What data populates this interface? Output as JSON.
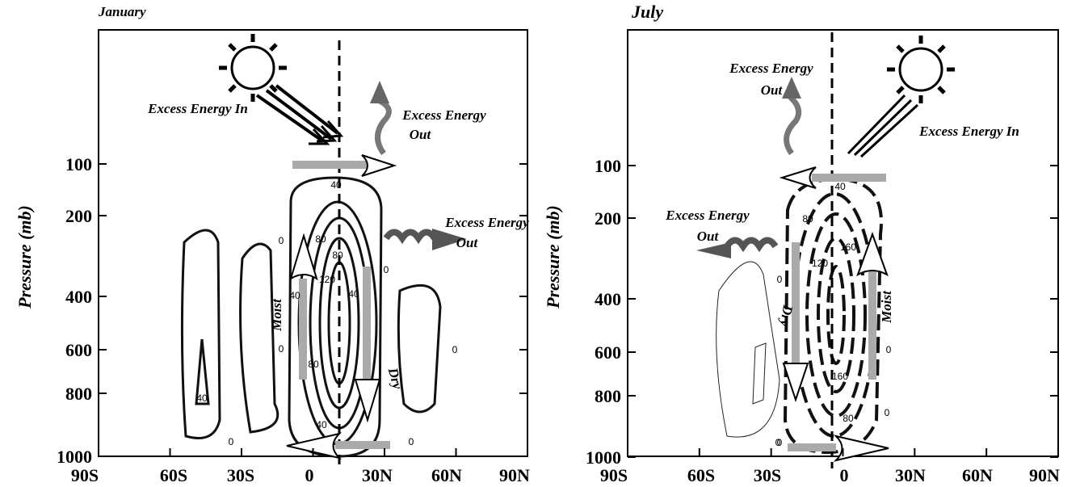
{
  "panels": [
    {
      "title": "January",
      "y_label": "Pressure (mb)",
      "yticks": [
        100,
        200,
        400,
        600,
        800,
        1000
      ],
      "xticks": [
        "90S",
        "60S",
        "30S",
        "0",
        "30N",
        "60N",
        "90N"
      ],
      "annotations": [
        "Excess Energy In",
        "Excess Energy",
        "Out",
        "Excess Energy",
        "Out",
        "Moist",
        "Dry"
      ],
      "contour_labels": [
        "40",
        "80",
        "120",
        "80",
        "40",
        "80",
        "40",
        "40",
        "40",
        "0",
        "0",
        "0",
        "0",
        "0",
        "0"
      ]
    },
    {
      "title": "July",
      "y_label": "Pressure (mb)",
      "yticks": [
        100,
        200,
        400,
        600,
        800,
        1000
      ],
      "xticks": [
        "90S",
        "60S",
        "30S",
        "0",
        "30N",
        "60N",
        "90N"
      ],
      "annotations": [
        "Excess Energy",
        "Out",
        "Excess Energy In",
        "Excess Energy",
        "Out",
        "Dry",
        "Moist"
      ],
      "contour_labels": [
        "40",
        "80",
        "120",
        "160",
        "160",
        "80",
        "0",
        "0",
        "0",
        "0",
        "0"
      ]
    }
  ]
}
